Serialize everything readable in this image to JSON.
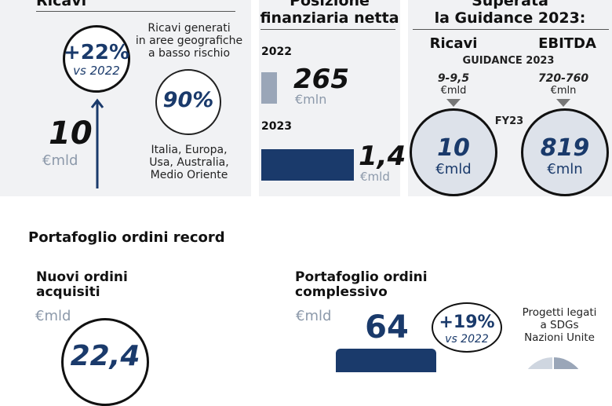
{
  "revenue": {
    "title": "Ricavi",
    "growth": "+22%",
    "growth_vs": "vs 2022",
    "value": "10",
    "unit": "€mld",
    "geo_caption": [
      "Ricavi generati",
      "in aree geografiche",
      "a basso rischio"
    ],
    "geo_pct": "90%",
    "geo_pct_value": 90,
    "geo_list": [
      "Italia, Europa,",
      "Usa, Australia,",
      "Medio Oriente"
    ]
  },
  "net_financial_position": {
    "title": [
      "Posizione",
      "finanziaria netta"
    ],
    "year_a": "2022",
    "value_a": "265",
    "unit_a": "€mln",
    "year_b": "2023",
    "value_b": "1,4",
    "unit_b": "€mld"
  },
  "guidance": {
    "title": [
      "Superata",
      "la Guidance 2023:"
    ],
    "col_revenue": "Ricavi",
    "col_ebitda": "EBITDA",
    "guidance_label": "GUIDANCE 2023",
    "rev_range": "9-9,5",
    "rev_range_unit": "€mld",
    "ebitda_range": "720-760",
    "ebitda_range_unit": "€mln",
    "fy_label": "FY23",
    "rev_actual": "10",
    "rev_actual_unit": "€mld",
    "ebitda_actual": "819",
    "ebitda_actual_unit": "€mln"
  },
  "backlog": {
    "section_title": "Portafoglio ordini record",
    "new_orders_title": [
      "Nuovi ordini",
      "acquisiti"
    ],
    "new_orders_unit": "€mld",
    "new_orders_value": "22,4",
    "total_title": [
      "Portafoglio ordini",
      "complessivo"
    ],
    "total_unit": "€mld",
    "total_value": "64",
    "total_growth": "+19%",
    "total_growth_vs": "vs 2022",
    "sdg_caption": [
      "Progetti legati",
      "a SDGs",
      "Nazioni Unite"
    ]
  },
  "colors": {
    "navy": "#1a3a6b",
    "grey_bar": "#9aa6b8",
    "panel_bg": "#f1f2f4",
    "grey_text": "#8c99aa"
  }
}
